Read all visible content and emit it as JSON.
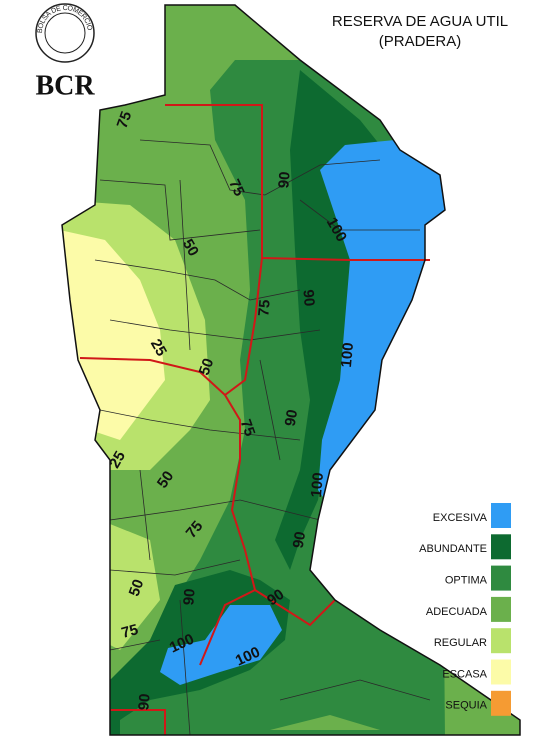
{
  "header": {
    "title": "RESERVA DE AGUA UTIL",
    "subtitle": "(PRADERA)"
  },
  "logo": {
    "text": "BCR",
    "ring": "BOLSA DE COMERCIO DE ROSARIO"
  },
  "legend": {
    "items": [
      {
        "label": "EXCESIVA",
        "color": "#2f9cf4"
      },
      {
        "label": "ABUNDANTE",
        "color": "#0d6a30"
      },
      {
        "label": "OPTIMA",
        "color": "#2f8a40"
      },
      {
        "label": "ADECUADA",
        "color": "#6bb04c"
      },
      {
        "label": "REGULAR",
        "color": "#b9e26c"
      },
      {
        "label": "ESCASA",
        "color": "#fcfba8"
      },
      {
        "label": "SEQUIA",
        "color": "#f59b33"
      }
    ]
  },
  "contour_labels": [
    "75",
    "75",
    "90",
    "100",
    "50",
    "75",
    "90",
    "100",
    "25",
    "50",
    "75",
    "90",
    "25",
    "50",
    "100",
    "75",
    "90",
    "50",
    "90",
    "90",
    "75",
    "100",
    "100",
    "90"
  ]
}
